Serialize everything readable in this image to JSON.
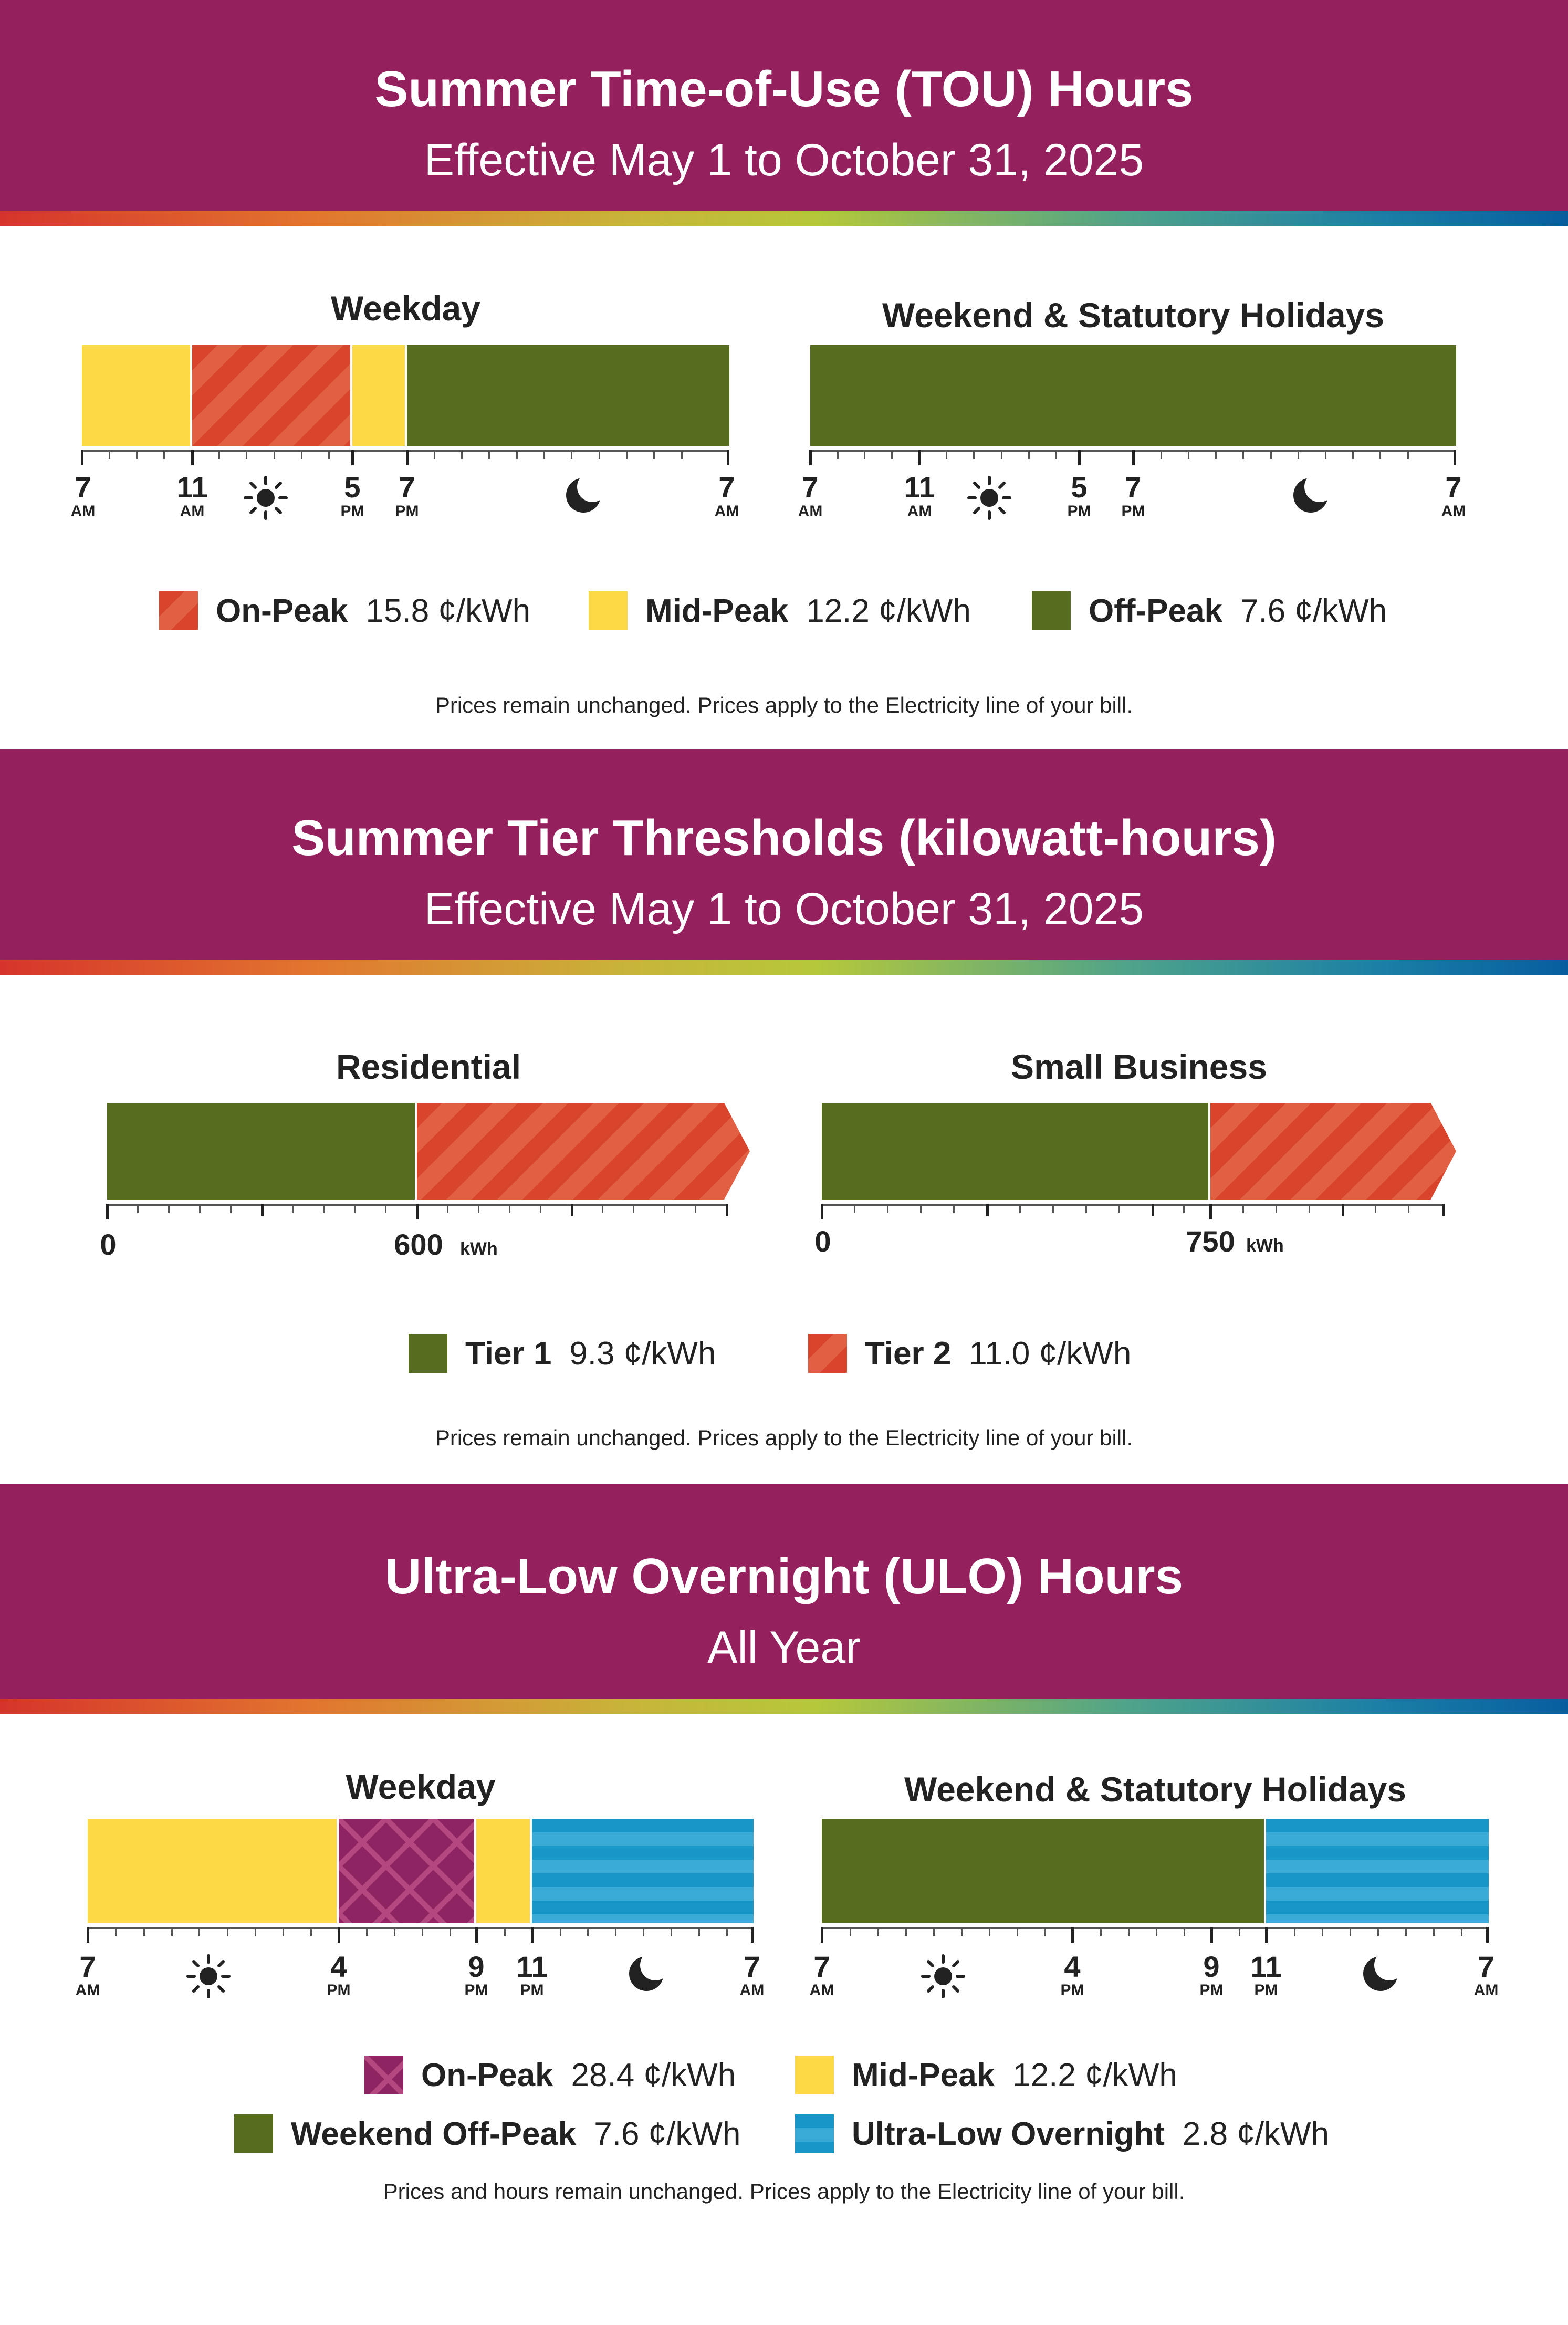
{
  "colors": {
    "banner": "#95205e",
    "on_peak_tou": "#d9452c",
    "mid_peak": "#fdd945",
    "off_peak": "#566c1f",
    "on_peak_ulo": "#8e2461",
    "ultra_low_overnight": "#1796c8"
  },
  "icons": {
    "day": "sun-icon",
    "night": "crescent-moon-icon"
  },
  "tou": {
    "title": "Summer Time-of-Use (TOU) Hours",
    "subtitle": "Effective May 1 to October 31, 2025",
    "weekday": {
      "label": "Weekday",
      "schedule": [
        {
          "from": "7 AM",
          "to": "11 AM",
          "period": "Mid-Peak"
        },
        {
          "from": "11 AM",
          "to": "5 PM",
          "period": "On-Peak"
        },
        {
          "from": "5 PM",
          "to": "7 PM",
          "period": "Mid-Peak"
        },
        {
          "from": "7 PM",
          "to": "7 AM",
          "period": "Off-Peak"
        }
      ],
      "ticks": [
        {
          "num": "7",
          "ampm": "AM"
        },
        {
          "num": "11",
          "ampm": "AM"
        },
        {
          "num": "5",
          "ampm": "PM"
        },
        {
          "num": "7",
          "ampm": "PM"
        },
        {
          "num": "7",
          "ampm": "AM"
        }
      ]
    },
    "weekend": {
      "label": "Weekend & Statutory Holidays",
      "schedule": [
        {
          "from": "7 AM",
          "to": "7 AM",
          "period": "Off-Peak"
        }
      ],
      "ticks": [
        {
          "num": "7",
          "ampm": "AM"
        },
        {
          "num": "11",
          "ampm": "AM"
        },
        {
          "num": "5",
          "ampm": "PM"
        },
        {
          "num": "7",
          "ampm": "PM"
        },
        {
          "num": "7",
          "ampm": "AM"
        }
      ]
    },
    "legend": [
      {
        "name": "On-Peak",
        "price": "15.8 ¢/kWh"
      },
      {
        "name": "Mid-Peak",
        "price": "12.2 ¢/kWh"
      },
      {
        "name": "Off-Peak",
        "price": "7.6 ¢/kWh"
      }
    ],
    "note": "Prices remain unchanged. Prices apply to the Electricity line of your bill."
  },
  "tier": {
    "title": "Summer Tier Thresholds (kilowatt-hours)",
    "subtitle": "Effective May 1 to October 31, 2025",
    "residential": {
      "label": "Residential",
      "start": "0",
      "threshold": "600",
      "unit": "kWh"
    },
    "small_business": {
      "label": "Small Business",
      "start": "0",
      "threshold": "750",
      "unit": "kWh"
    },
    "legend": [
      {
        "name": "Tier 1",
        "price": "9.3 ¢/kWh"
      },
      {
        "name": "Tier 2",
        "price": "11.0 ¢/kWh"
      }
    ],
    "note": "Prices remain unchanged. Prices apply to the Electricity line of your bill."
  },
  "ulo": {
    "title": "Ultra-Low Overnight (ULO) Hours",
    "subtitle": "All Year",
    "weekday": {
      "label": "Weekday",
      "schedule": [
        {
          "from": "7 AM",
          "to": "4 PM",
          "period": "Mid-Peak"
        },
        {
          "from": "4 PM",
          "to": "9 PM",
          "period": "On-Peak"
        },
        {
          "from": "9 PM",
          "to": "11 PM",
          "period": "Mid-Peak"
        },
        {
          "from": "11 PM",
          "to": "7 AM",
          "period": "Ultra-Low Overnight"
        }
      ],
      "ticks": [
        {
          "num": "7",
          "ampm": "AM"
        },
        {
          "num": "4",
          "ampm": "PM"
        },
        {
          "num": "9",
          "ampm": "PM"
        },
        {
          "num": "11",
          "ampm": "PM"
        },
        {
          "num": "7",
          "ampm": "AM"
        }
      ]
    },
    "weekend": {
      "label": "Weekend & Statutory Holidays",
      "schedule": [
        {
          "from": "7 AM",
          "to": "11 PM",
          "period": "Weekend Off-Peak"
        },
        {
          "from": "11 PM",
          "to": "7 AM",
          "period": "Ultra-Low Overnight"
        }
      ],
      "ticks": [
        {
          "num": "7",
          "ampm": "AM"
        },
        {
          "num": "4",
          "ampm": "PM"
        },
        {
          "num": "9",
          "ampm": "PM"
        },
        {
          "num": "11",
          "ampm": "PM"
        },
        {
          "num": "7",
          "ampm": "AM"
        }
      ]
    },
    "legend": [
      {
        "name": "On-Peak",
        "price": "28.4 ¢/kWh"
      },
      {
        "name": "Mid-Peak",
        "price": "12.2 ¢/kWh"
      },
      {
        "name": "Weekend Off-Peak",
        "price": "7.6 ¢/kWh"
      },
      {
        "name": "Ultra-Low Overnight",
        "price": "2.8 ¢/kWh"
      }
    ],
    "note": "Prices and hours remain unchanged. Prices apply to the Electricity line of your bill."
  }
}
